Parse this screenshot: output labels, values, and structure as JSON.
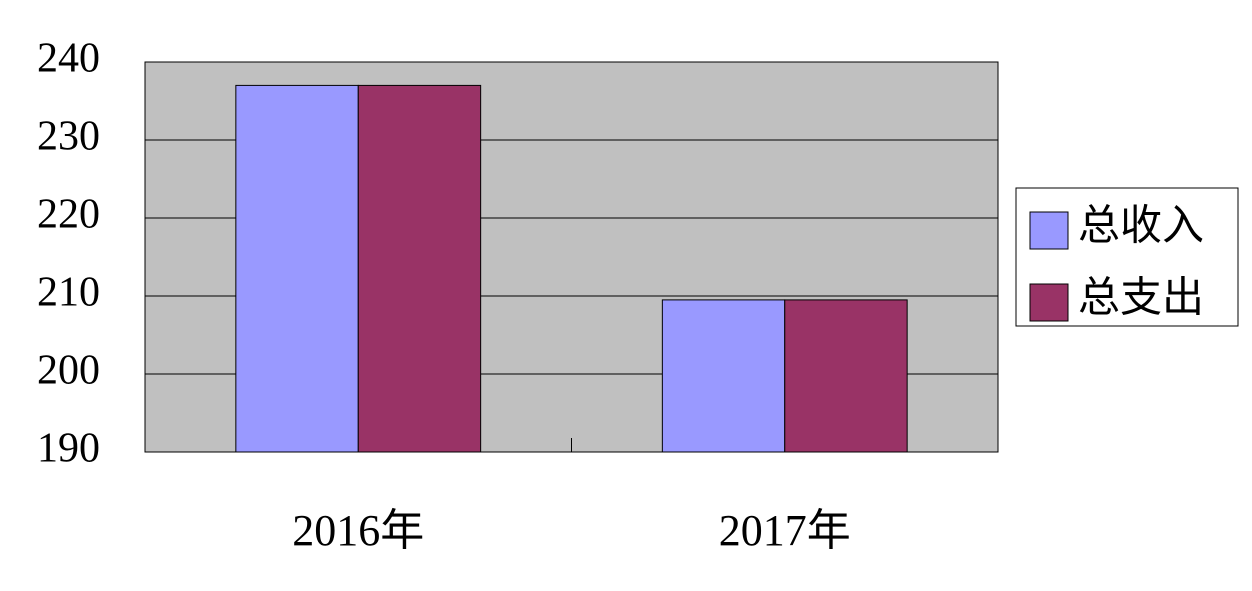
{
  "chart_data": {
    "type": "bar",
    "categories": [
      "2016年",
      "2017年"
    ],
    "series": [
      {
        "name": "总收入",
        "color": "#9999ff",
        "values": [
          237,
          209.5
        ]
      },
      {
        "name": "总支出",
        "color": "#993366",
        "values": [
          237,
          209.5
        ]
      }
    ],
    "ylim": [
      190,
      240
    ],
    "yticks": [
      190,
      200,
      210,
      220,
      230,
      240
    ],
    "grid": true,
    "legend": "right"
  }
}
